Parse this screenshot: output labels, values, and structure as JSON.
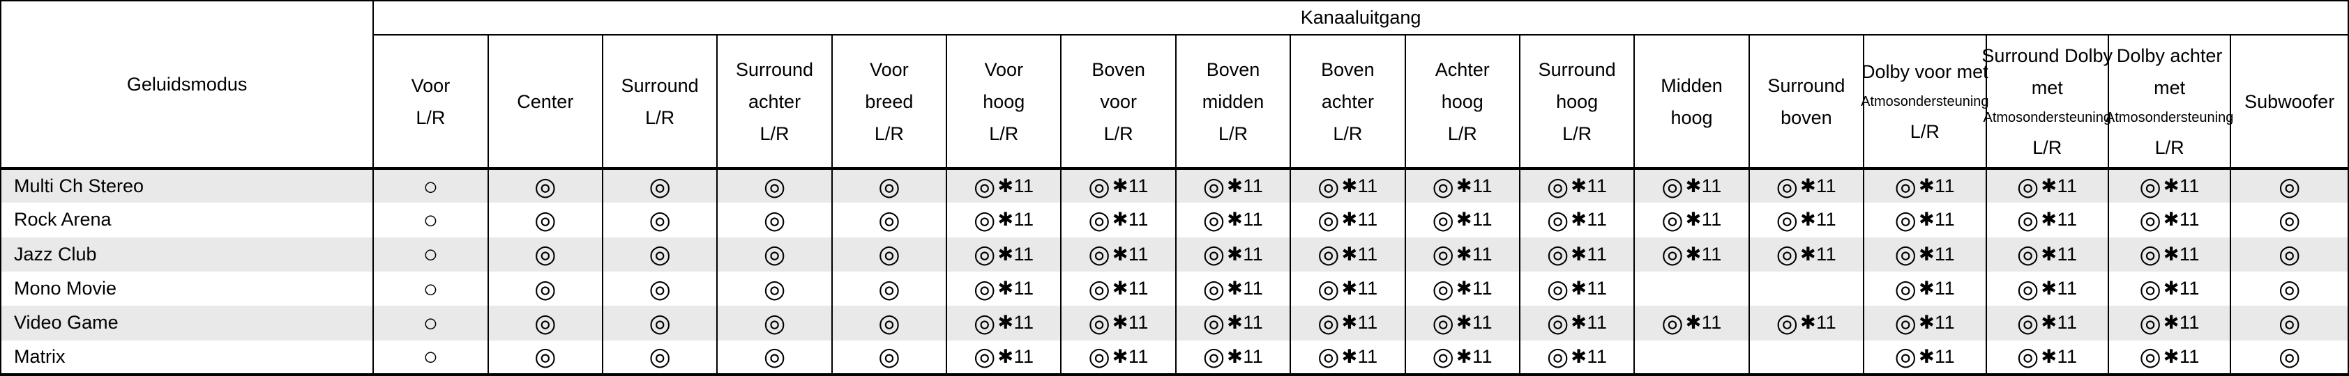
{
  "table": {
    "sound_mode_header": "Geluidsmodus",
    "group_header": "Kanaaluitgang",
    "columns": [
      {
        "lines": [
          "Voor",
          "L/R"
        ]
      },
      {
        "lines": [
          "Center"
        ]
      },
      {
        "lines": [
          "Surround",
          "L/R"
        ]
      },
      {
        "lines": [
          "Surround",
          "achter",
          "L/R"
        ]
      },
      {
        "lines": [
          "Voor",
          "breed",
          "L/R"
        ]
      },
      {
        "lines": [
          "Voor",
          "hoog",
          "L/R"
        ]
      },
      {
        "lines": [
          "Boven",
          "voor",
          "L/R"
        ]
      },
      {
        "lines": [
          "Boven",
          "midden",
          "L/R"
        ]
      },
      {
        "lines": [
          "Boven",
          "achter",
          "L/R"
        ]
      },
      {
        "lines": [
          "Achter",
          "hoog",
          "L/R"
        ]
      },
      {
        "lines": [
          "Surround",
          "hoog",
          "L/R"
        ]
      },
      {
        "lines": [
          "Midden",
          "hoog"
        ]
      },
      {
        "lines": [
          "Surround",
          "boven"
        ]
      },
      {
        "lines": [
          "Dolby voor met",
          "Atmosondersteuning",
          "L/R"
        ]
      },
      {
        "lines": [
          "Surround Dolby",
          "met",
          "Atmosondersteuning",
          "L/R"
        ]
      },
      {
        "lines": [
          "Dolby achter",
          "met",
          "Atmosondersteuning",
          "L/R"
        ]
      },
      {
        "lines": [
          "Subwoofer"
        ]
      }
    ],
    "rows": [
      {
        "label": "Multi Ch Stereo",
        "cells": [
          "○",
          "◎",
          "◎",
          "◎",
          "◎",
          "◎✱11",
          "◎✱11",
          "◎✱11",
          "◎✱11",
          "◎✱11",
          "◎✱11",
          "◎✱11",
          "◎✱11",
          "◎✱11",
          "◎✱11",
          "◎✱11",
          "◎"
        ]
      },
      {
        "label": "Rock Arena",
        "cells": [
          "○",
          "◎",
          "◎",
          "◎",
          "◎",
          "◎✱11",
          "◎✱11",
          "◎✱11",
          "◎✱11",
          "◎✱11",
          "◎✱11",
          "◎✱11",
          "◎✱11",
          "◎✱11",
          "◎✱11",
          "◎✱11",
          "◎"
        ]
      },
      {
        "label": "Jazz Club",
        "cells": [
          "○",
          "◎",
          "◎",
          "◎",
          "◎",
          "◎✱11",
          "◎✱11",
          "◎✱11",
          "◎✱11",
          "◎✱11",
          "◎✱11",
          "◎✱11",
          "◎✱11",
          "◎✱11",
          "◎✱11",
          "◎✱11",
          "◎"
        ]
      },
      {
        "label": "Mono Movie",
        "cells": [
          "○",
          "◎",
          "◎",
          "◎",
          "◎",
          "◎✱11",
          "◎✱11",
          "◎✱11",
          "◎✱11",
          "◎✱11",
          "◎✱11",
          "",
          "",
          "◎✱11",
          "◎✱11",
          "◎✱11",
          "◎"
        ]
      },
      {
        "label": "Video Game",
        "cells": [
          "○",
          "◎",
          "◎",
          "◎",
          "◎",
          "◎✱11",
          "◎✱11",
          "◎✱11",
          "◎✱11",
          "◎✱11",
          "◎✱11",
          "◎✱11",
          "◎✱11",
          "◎✱11",
          "◎✱11",
          "◎✱11",
          "◎"
        ]
      },
      {
        "label": "Matrix",
        "cells": [
          "○",
          "◎",
          "◎",
          "◎",
          "◎",
          "◎✱11",
          "◎✱11",
          "◎✱11",
          "◎✱11",
          "◎✱11",
          "◎✱11",
          "",
          "",
          "◎✱11",
          "◎✱11",
          "◎✱11",
          "◎"
        ]
      }
    ]
  },
  "symbols": {
    "single_circle": "○",
    "double_circle": "◎",
    "note_11": "✱11"
  },
  "colors": {
    "border": "#000000",
    "text": "#000000",
    "row_alt": "#e9e9e9",
    "background": "#ffffff"
  }
}
